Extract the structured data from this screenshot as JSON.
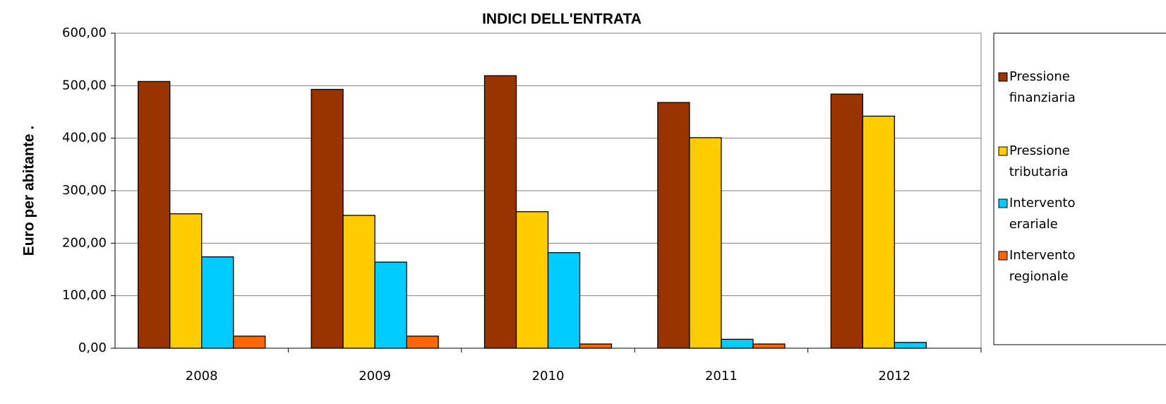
{
  "chart_data": {
    "type": "bar",
    "title": "INDICI DELL'ENTRATA",
    "y_label": "Euro per abitante  .",
    "categories": [
      "2008",
      "2009",
      "2010",
      "2011",
      "2012"
    ],
    "series": [
      {
        "name": "Pressione finanziaria",
        "color": "#993300",
        "values": [
          508,
          493,
          519,
          468,
          484
        ]
      },
      {
        "name": "Pressione tributaria",
        "color": "#ffcc00",
        "values": [
          256,
          253,
          260,
          401,
          442
        ]
      },
      {
        "name": "Intervento erariale",
        "color": "#00ccff",
        "values": [
          174,
          164,
          182,
          17,
          11
        ]
      },
      {
        "name": "Intervento regionale",
        "color": "#ff6600",
        "values": [
          23,
          23,
          8,
          8,
          0
        ]
      }
    ],
    "ylim": [
      0,
      600
    ],
    "yticks": [
      {
        "value": 0,
        "label": "0,00"
      },
      {
        "value": 100,
        "label": "100,00"
      },
      {
        "value": 200,
        "label": "200,00"
      },
      {
        "value": 300,
        "label": "300,00"
      },
      {
        "value": 400,
        "label": "400,00"
      },
      {
        "value": 500,
        "label": "500,00"
      },
      {
        "value": 600,
        "label": "600,00"
      }
    ],
    "grid": true,
    "legend": "right"
  }
}
